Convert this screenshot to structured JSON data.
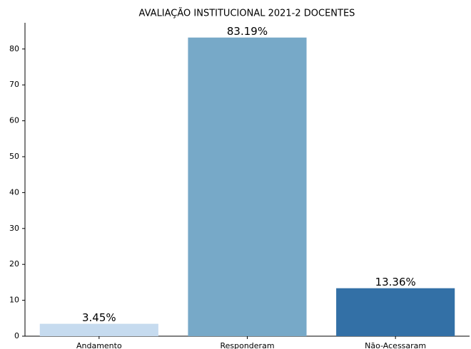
{
  "chart_data": {
    "type": "bar",
    "title": "AVALIAÇÃO INSTITUCIONAL 2021-2 DOCENTES",
    "categories": [
      "Andamento",
      "Responderam",
      "Não-Acessaram"
    ],
    "values": [
      3.45,
      83.19,
      13.36
    ],
    "value_labels": [
      "3.45%",
      "83.19%",
      "13.36%"
    ],
    "colors": [
      "#c6dbef",
      "#77a9c8",
      "#3370a6"
    ],
    "ylim": [
      0,
      87.3
    ],
    "yticks": [
      0,
      10,
      20,
      30,
      40,
      50,
      60,
      70,
      80
    ],
    "grid": false
  }
}
